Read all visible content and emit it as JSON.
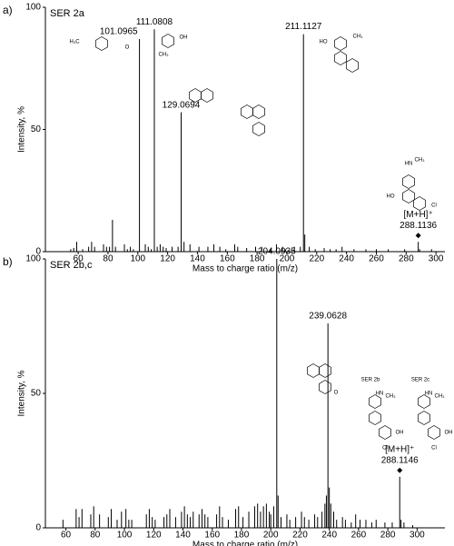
{
  "chart_data": [
    {
      "type": "bar",
      "panel_label": "a)",
      "title": "SER 2a",
      "xlabel": "Mass to charge ratio (m/z)",
      "ylabel": "Intensity, %",
      "x": [
        55,
        57,
        59,
        63,
        67,
        69,
        71,
        77,
        79,
        81,
        83,
        85,
        91,
        93,
        95,
        97,
        101.0965,
        105,
        107,
        109,
        111.0808,
        113,
        115,
        117,
        119,
        123,
        127,
        129.0694,
        131,
        135,
        141,
        147,
        151,
        155,
        159,
        165,
        167,
        173,
        179,
        183,
        189,
        193,
        197,
        199,
        205,
        209,
        211.1127,
        212,
        215,
        219,
        225,
        229,
        233,
        237,
        245,
        253,
        260,
        268,
        279,
        288.1136,
        289,
        297
      ],
      "values": [
        1,
        1.5,
        4,
        1,
        2,
        4,
        2,
        3,
        2,
        2,
        13,
        2,
        3,
        1,
        2,
        1,
        87,
        3,
        2,
        1,
        91,
        2,
        3,
        2,
        1.5,
        2,
        2,
        57,
        4,
        3,
        2,
        2,
        3,
        2,
        1,
        3,
        2,
        1.5,
        2,
        2,
        1,
        3,
        2,
        1,
        2,
        2,
        89,
        7,
        2,
        1,
        1.5,
        1,
        1,
        2,
        1,
        1,
        1,
        1,
        1,
        4,
        1,
        1
      ],
      "color": "#000000",
      "xlim": [
        38,
        306
      ],
      "ylim": [
        0,
        100
      ],
      "xticks": [
        60,
        80,
        100,
        120,
        140,
        160,
        180,
        200,
        220,
        240,
        260,
        280,
        300
      ],
      "yticks": [
        0,
        50,
        100
      ],
      "annotations": [
        {
          "text": "101.0965",
          "x": 101.0965
        },
        {
          "text": "111.0808",
          "x": 111.0808
        },
        {
          "text": "129.0694",
          "x": 129.0694
        },
        {
          "text": "211.1127",
          "x": 211.1127
        },
        {
          "text": "[M+H]⁺",
          "x": 288.1136
        },
        {
          "text": "288.1136",
          "x": 288.1136
        }
      ],
      "structure_labels": [
        [
          "H₃C",
          "O"
        ],
        [
          "OH",
          "CH₃"
        ],
        [
          "HO",
          "CH₃"
        ],
        [
          "HN",
          "CH₃",
          "HO",
          "Cl"
        ]
      ]
    },
    {
      "type": "bar",
      "panel_label": "b)",
      "title": "SER 2b,c",
      "xlabel": "Mass to charge ratio (m/z)",
      "ylabel": "Intensity, %",
      "x": [
        58,
        67,
        69,
        71,
        77,
        79,
        83,
        89,
        91,
        95,
        98,
        101,
        103,
        105,
        115,
        117,
        119,
        121,
        127,
        129,
        131,
        135,
        139,
        141,
        143,
        145,
        147,
        151,
        153,
        155,
        157,
        163,
        165,
        167,
        171,
        176,
        178,
        181,
        185,
        189,
        191,
        193,
        195,
        197,
        199,
        200,
        202,
        204.0935,
        205,
        207,
        211,
        213,
        217,
        221,
        223,
        226,
        230,
        232,
        235,
        237,
        238,
        239.0628,
        240,
        241,
        243,
        245,
        249,
        251,
        255,
        258,
        261,
        265,
        269,
        272,
        278,
        283,
        288.1146,
        289,
        291,
        297
      ],
      "values": [
        3,
        7,
        4,
        7,
        5,
        8,
        5,
        4,
        7,
        3,
        6,
        7,
        3,
        3,
        5,
        7,
        4,
        3,
        4,
        5,
        7,
        4,
        6,
        8,
        5,
        4,
        6,
        5,
        7,
        5,
        4,
        5,
        8,
        4,
        3,
        7,
        8,
        4,
        6,
        8,
        9,
        6,
        8,
        9,
        6,
        5,
        8,
        100,
        12,
        4,
        5,
        3,
        4,
        6,
        4,
        3,
        5,
        4,
        6,
        9,
        12,
        76,
        15,
        9,
        6,
        3,
        4,
        3,
        2,
        5,
        3,
        3,
        2,
        3,
        2,
        2,
        19,
        3,
        2,
        1
      ],
      "color": "#000000",
      "xlim": [
        46,
        319
      ],
      "ylim": [
        0,
        100
      ],
      "xticks": [
        60,
        80,
        100,
        120,
        140,
        160,
        180,
        200,
        220,
        240,
        260,
        280,
        300
      ],
      "yticks": [
        0,
        50,
        100
      ],
      "annotations": [
        {
          "text": "204.0935",
          "x": 204.0935
        },
        {
          "text": "239.0628",
          "x": 239.0628
        },
        {
          "text": "[M+H]⁺",
          "x": 288.1146
        },
        {
          "text": "288.1146",
          "x": 288.1146
        }
      ],
      "structure_labels": [
        [
          "O"
        ],
        [
          "SER 2b",
          "HN",
          "CH₃",
          "OH",
          "Cl"
        ],
        [
          "SER 2c",
          "HN",
          "CH₃",
          "OH",
          "Cl"
        ]
      ]
    }
  ]
}
